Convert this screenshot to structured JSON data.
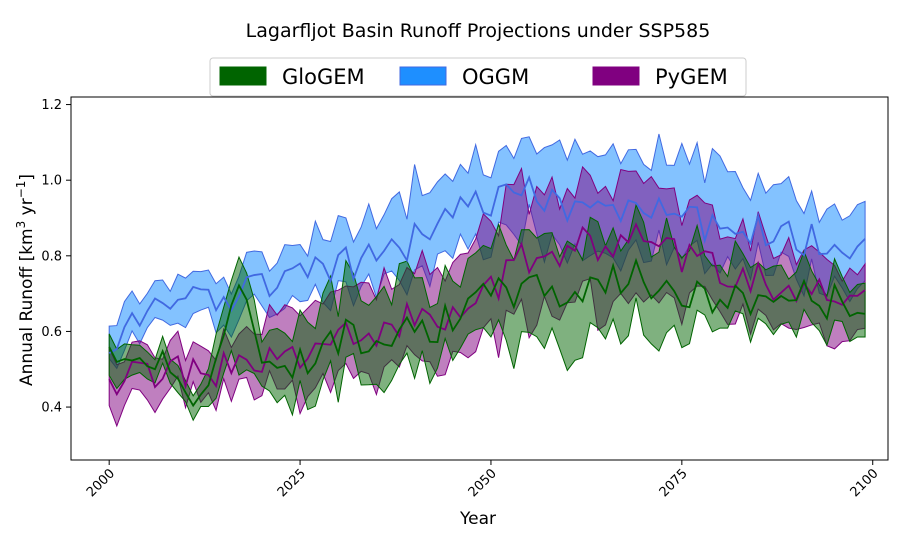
{
  "chart_data": {
    "type": "area",
    "title": "Lagarfljot Basin Runoff Projections under SSP585",
    "xlabel": "Year",
    "ylabel_main": "Annual Runoff [km",
    "ylabel_sup1": "3",
    "ylabel_mid": " yr",
    "ylabel_sup2": "−1",
    "ylabel_end": "]",
    "xlim": [
      1995,
      2102
    ],
    "ylim": [
      0.26,
      1.22
    ],
    "xticks": [
      2000,
      2025,
      2050,
      2075,
      2100
    ],
    "yticks": [
      0.4,
      0.6,
      0.8,
      1.0,
      1.2
    ],
    "yticks_labels": [
      "0.4",
      "0.6",
      "0.8",
      "1.0",
      "1.2"
    ],
    "legend_position": "top-center",
    "series": [
      {
        "name": "GloGEM",
        "color": "#006400",
        "keyframes": [
          [
            2000,
            0.52,
            0.46,
            0.56
          ],
          [
            2003,
            0.55,
            0.5,
            0.58
          ],
          [
            2010,
            0.48,
            0.45,
            0.51
          ],
          [
            2012,
            0.42,
            0.39,
            0.44
          ],
          [
            2015,
            0.6,
            0.48,
            0.68
          ],
          [
            2017,
            0.7,
            0.5,
            0.75
          ],
          [
            2020,
            0.54,
            0.47,
            0.6
          ],
          [
            2025,
            0.52,
            0.44,
            0.62
          ],
          [
            2030,
            0.58,
            0.48,
            0.7
          ],
          [
            2035,
            0.6,
            0.5,
            0.74
          ],
          [
            2040,
            0.62,
            0.52,
            0.74
          ],
          [
            2045,
            0.62,
            0.54,
            0.72
          ],
          [
            2050,
            0.7,
            0.6,
            0.8
          ],
          [
            2055,
            0.72,
            0.57,
            0.84
          ],
          [
            2060,
            0.7,
            0.56,
            0.82
          ],
          [
            2065,
            0.74,
            0.6,
            0.86
          ],
          [
            2070,
            0.74,
            0.6,
            0.86
          ],
          [
            2075,
            0.7,
            0.6,
            0.82
          ],
          [
            2080,
            0.68,
            0.62,
            0.78
          ],
          [
            2085,
            0.69,
            0.62,
            0.78
          ],
          [
            2090,
            0.7,
            0.62,
            0.76
          ],
          [
            2095,
            0.68,
            0.6,
            0.74
          ],
          [
            2099,
            0.68,
            0.62,
            0.75
          ]
        ]
      },
      {
        "name": "OGGM",
        "color": "#4169E1",
        "fill": "#1e8fff",
        "keyframes": [
          [
            2000,
            0.56,
            0.54,
            0.62
          ],
          [
            2002,
            0.62,
            0.56,
            0.68
          ],
          [
            2005,
            0.68,
            0.62,
            0.72
          ],
          [
            2010,
            0.68,
            0.62,
            0.73
          ],
          [
            2015,
            0.7,
            0.64,
            0.75
          ],
          [
            2020,
            0.72,
            0.65,
            0.77
          ],
          [
            2025,
            0.74,
            0.66,
            0.8
          ],
          [
            2030,
            0.78,
            0.7,
            0.86
          ],
          [
            2035,
            0.8,
            0.72,
            0.9
          ],
          [
            2040,
            0.84,
            0.74,
            0.96
          ],
          [
            2045,
            0.9,
            0.78,
            1.0
          ],
          [
            2050,
            0.94,
            0.82,
            1.04
          ],
          [
            2055,
            0.96,
            0.86,
            1.08
          ],
          [
            2060,
            0.94,
            0.82,
            1.06
          ],
          [
            2065,
            0.94,
            0.82,
            1.06
          ],
          [
            2070,
            0.94,
            0.82,
            1.08
          ],
          [
            2075,
            0.9,
            0.8,
            1.04
          ],
          [
            2080,
            0.88,
            0.78,
            1.02
          ],
          [
            2085,
            0.86,
            0.76,
            0.98
          ],
          [
            2090,
            0.84,
            0.76,
            0.94
          ],
          [
            2095,
            0.84,
            0.74,
            0.92
          ],
          [
            2099,
            0.81,
            0.72,
            0.9
          ]
        ]
      },
      {
        "name": "PyGEM",
        "color": "#800080",
        "keyframes": [
          [
            2000,
            0.44,
            0.38,
            0.5
          ],
          [
            2003,
            0.48,
            0.4,
            0.54
          ],
          [
            2010,
            0.49,
            0.42,
            0.54
          ],
          [
            2015,
            0.5,
            0.44,
            0.56
          ],
          [
            2020,
            0.52,
            0.46,
            0.6
          ],
          [
            2025,
            0.54,
            0.44,
            0.64
          ],
          [
            2030,
            0.58,
            0.48,
            0.7
          ],
          [
            2035,
            0.6,
            0.5,
            0.72
          ],
          [
            2040,
            0.63,
            0.52,
            0.74
          ],
          [
            2045,
            0.66,
            0.56,
            0.78
          ],
          [
            2050,
            0.72,
            0.6,
            0.88
          ],
          [
            2055,
            0.8,
            0.66,
            0.94
          ],
          [
            2060,
            0.82,
            0.66,
            0.98
          ],
          [
            2065,
            0.84,
            0.68,
            0.98
          ],
          [
            2070,
            0.84,
            0.7,
            0.98
          ],
          [
            2075,
            0.8,
            0.68,
            0.94
          ],
          [
            2080,
            0.76,
            0.66,
            0.86
          ],
          [
            2085,
            0.74,
            0.64,
            0.84
          ],
          [
            2090,
            0.7,
            0.6,
            0.8
          ],
          [
            2095,
            0.68,
            0.58,
            0.76
          ],
          [
            2099,
            0.68,
            0.56,
            0.74
          ]
        ]
      }
    ]
  }
}
